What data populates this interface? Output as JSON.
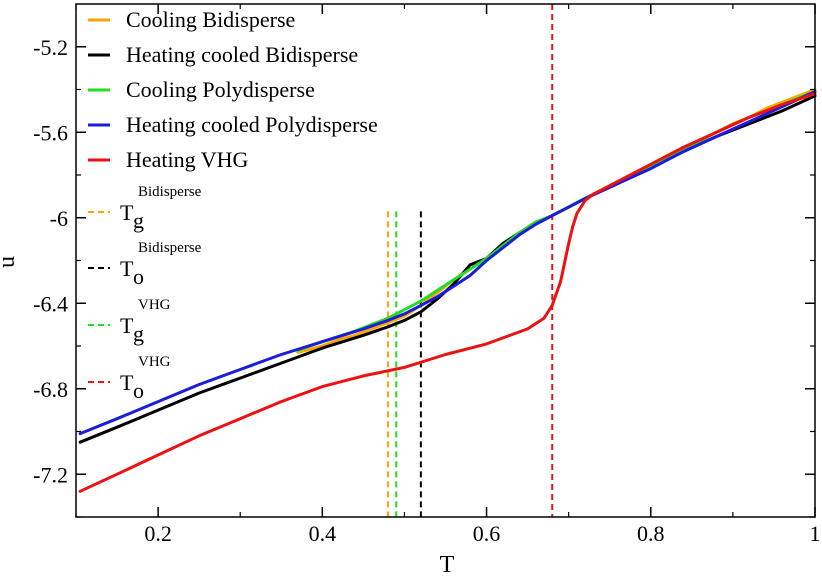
{
  "chart_data": {
    "type": "line",
    "xlabel": "T",
    "ylabel": "u",
    "xlim": [
      0.1,
      1.0
    ],
    "ylim": [
      -7.4,
      -5.0
    ],
    "xticks": [
      0.2,
      0.4,
      0.6,
      0.8,
      1.0
    ],
    "xtick_labels": [
      "0.2",
      "0.4",
      "0.6",
      "0.8",
      "1"
    ],
    "yticks": [
      -7.2,
      -6.8,
      -6.4,
      -6.0,
      -5.6,
      -5.2
    ],
    "ytick_labels": [
      "-7.2",
      "-6.8",
      "-6.4",
      "-6",
      "-5.6",
      "-5.2"
    ],
    "legend_position": "top-left",
    "series": [
      {
        "name": "Cooling Bidisperse",
        "color": "#ffa500",
        "x": [
          0.37,
          0.4,
          0.42,
          0.44,
          0.46,
          0.48,
          0.5,
          0.52,
          0.54,
          0.56,
          0.58,
          0.6,
          0.62,
          0.64,
          0.66,
          0.68,
          0.7,
          0.72,
          0.74,
          0.76,
          0.78,
          0.8,
          0.82,
          0.84,
          0.86,
          0.88,
          0.9,
          0.92,
          0.94,
          0.96,
          0.98,
          1.0
        ],
        "y": [
          -6.63,
          -6.6,
          -6.57,
          -6.55,
          -6.52,
          -6.49,
          -6.46,
          -6.41,
          -6.35,
          -6.29,
          -6.24,
          -6.19,
          -6.13,
          -6.07,
          -6.02,
          -5.99,
          -5.95,
          -5.91,
          -5.87,
          -5.83,
          -5.79,
          -5.75,
          -5.71,
          -5.67,
          -5.64,
          -5.6,
          -5.56,
          -5.53,
          -5.49,
          -5.46,
          -5.43,
          -5.4
        ]
      },
      {
        "name": "Heating cooled Bidisperse",
        "color": "#000000",
        "x": [
          0.105,
          0.15,
          0.2,
          0.25,
          0.3,
          0.35,
          0.4,
          0.45,
          0.48,
          0.5,
          0.52,
          0.54,
          0.56,
          0.58,
          0.6,
          0.62,
          0.64,
          0.66,
          0.68,
          0.7,
          0.72,
          0.76,
          0.8,
          0.84,
          0.88,
          0.92,
          0.96,
          1.0
        ],
        "y": [
          -7.05,
          -6.98,
          -6.9,
          -6.82,
          -6.75,
          -6.68,
          -6.61,
          -6.55,
          -6.51,
          -6.48,
          -6.44,
          -6.38,
          -6.31,
          -6.22,
          -6.19,
          -6.12,
          -6.07,
          -6.03,
          -5.99,
          -5.95,
          -5.91,
          -5.84,
          -5.76,
          -5.69,
          -5.62,
          -5.56,
          -5.5,
          -5.43
        ]
      },
      {
        "name": "Cooling Polydisperse",
        "color": "#22dd22",
        "x": [
          0.37,
          0.4,
          0.44,
          0.48,
          0.5,
          0.52,
          0.54,
          0.56,
          0.58,
          0.6,
          0.62,
          0.64,
          0.66,
          0.68,
          0.7,
          0.72,
          0.76,
          0.8,
          0.84,
          0.88,
          0.92,
          0.96,
          1.0
        ],
        "y": [
          -6.62,
          -6.58,
          -6.53,
          -6.47,
          -6.43,
          -6.39,
          -6.34,
          -6.29,
          -6.24,
          -6.19,
          -6.13,
          -6.07,
          -6.02,
          -5.99,
          -5.95,
          -5.91,
          -5.83,
          -5.76,
          -5.68,
          -5.6,
          -5.53,
          -5.47,
          -5.41
        ]
      },
      {
        "name": "Heating cooled Polydisperse",
        "color": "#1c1cdd",
        "x": [
          0.105,
          0.15,
          0.2,
          0.25,
          0.3,
          0.35,
          0.4,
          0.45,
          0.48,
          0.5,
          0.52,
          0.54,
          0.56,
          0.58,
          0.6,
          0.62,
          0.64,
          0.66,
          0.68,
          0.7,
          0.72,
          0.76,
          0.8,
          0.84,
          0.88,
          0.92,
          0.96,
          1.0
        ],
        "y": [
          -7.01,
          -6.94,
          -6.86,
          -6.78,
          -6.71,
          -6.64,
          -6.58,
          -6.52,
          -6.48,
          -6.45,
          -6.41,
          -6.37,
          -6.32,
          -6.27,
          -6.2,
          -6.14,
          -6.08,
          -6.03,
          -5.99,
          -5.95,
          -5.91,
          -5.84,
          -5.77,
          -5.69,
          -5.62,
          -5.55,
          -5.48,
          -5.41
        ]
      },
      {
        "name": "Heating VHG",
        "color": "#ee1111",
        "x": [
          0.105,
          0.15,
          0.2,
          0.25,
          0.3,
          0.35,
          0.4,
          0.45,
          0.5,
          0.55,
          0.6,
          0.65,
          0.67,
          0.68,
          0.69,
          0.7,
          0.705,
          0.71,
          0.72,
          0.73,
          0.76,
          0.8,
          0.84,
          0.88,
          0.92,
          0.96,
          1.0
        ],
        "y": [
          -7.28,
          -7.2,
          -7.11,
          -7.02,
          -6.94,
          -6.86,
          -6.79,
          -6.74,
          -6.7,
          -6.64,
          -6.59,
          -6.52,
          -6.47,
          -6.41,
          -6.3,
          -6.12,
          -6.04,
          -5.98,
          -5.92,
          -5.89,
          -5.83,
          -5.75,
          -5.67,
          -5.6,
          -5.53,
          -5.47,
          -5.42
        ]
      }
    ],
    "vlines": [
      {
        "label_main": "T",
        "label_sub": "g",
        "label_sup": "Bidisperse",
        "x": 0.48,
        "color": "#ffa500",
        "y_top": -5.97
      },
      {
        "label_main": "T",
        "label_sub": "o",
        "label_sup": "Bidisperse",
        "x": 0.52,
        "color": "#000000",
        "y_top": -5.97
      },
      {
        "label_main": "T",
        "label_sub": "g",
        "label_sup": "VHG",
        "x": 0.49,
        "color": "#22dd22",
        "y_top": -5.97
      },
      {
        "label_main": "T",
        "label_sub": "o",
        "label_sup": "VHG",
        "x": 0.68,
        "color": "#ee1111",
        "y_top": -5.0
      }
    ]
  }
}
